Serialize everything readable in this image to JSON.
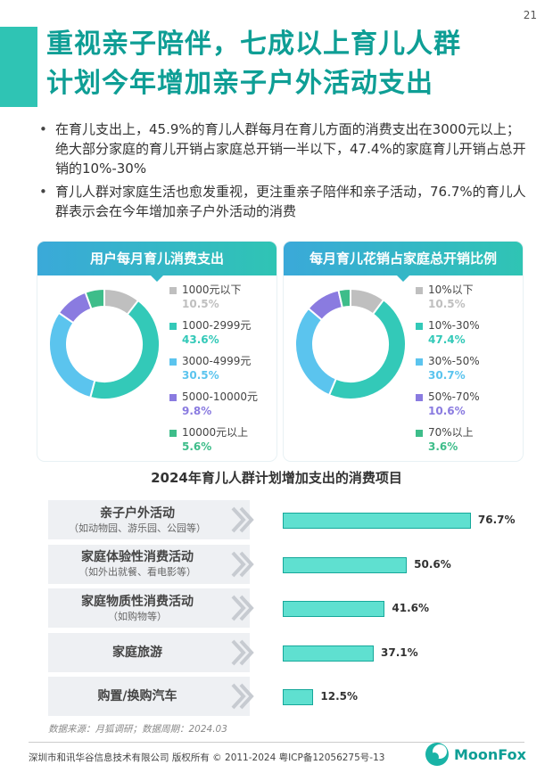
{
  "page_number": "21",
  "title": {
    "line1": "重视亲子陪伴，七成以上育儿人群",
    "line2": "计划今年增加亲子户外活动支出"
  },
  "bullets": [
    "在育儿支出上，45.9%的育儿人群每月在育儿方面的消费支出在3000元以上；绝大部分家庭的育儿开销占家庭总开销一半以下，47.4%的家庭育儿开销占总开销的10%-30%",
    "育儿人群对家庭生活也愈发重视，更注重亲子陪伴和亲子活动，76.7%的育儿人群表示会在今年增加亲子户外活动的消费"
  ],
  "watermark": "MoonFox",
  "chart_data": [
    {
      "type": "pie",
      "title": "用户每月育儿消费支出",
      "categories": [
        "1000元以下",
        "1000-2999元",
        "3000-4999元",
        "5000-10000元",
        "10000元以上"
      ],
      "values": [
        10.5,
        43.6,
        30.5,
        9.8,
        5.6
      ],
      "value_labels": [
        "10.5%",
        "43.6%",
        "30.5%",
        "9.8%",
        "5.6%"
      ],
      "colors": [
        "#bfbfbf",
        "#33c9b8",
        "#5bc4ee",
        "#8a7be0",
        "#3ebd8a"
      ],
      "legend_placement": "right"
    },
    {
      "type": "pie",
      "title": "每月育儿花销占家庭总开销比例",
      "categories": [
        "10%以下",
        "10%-30%",
        "30%-50%",
        "50%-70%",
        "70%以上"
      ],
      "values": [
        10.5,
        47.4,
        30.7,
        10.6,
        3.6
      ],
      "value_labels": [
        "10.5%",
        "47.4%",
        "30.7%",
        "10.6%",
        "3.6%"
      ],
      "colors": [
        "#bfbfbf",
        "#33c9b8",
        "#5bc4ee",
        "#8a7be0",
        "#3ebd8a"
      ],
      "legend_placement": "right"
    },
    {
      "type": "bar",
      "orientation": "horizontal",
      "title": "2024年育儿人群计划增加支出的消费项目",
      "categories": [
        {
          "main": "亲子户外活动",
          "sub": "（如动物园、游乐园、公园等）"
        },
        {
          "main": "家庭体验性消费活动",
          "sub": "（如外出就餐、看电影等）"
        },
        {
          "main": "家庭物质性消费活动",
          "sub": "（如购物等）"
        },
        {
          "main": "家庭旅游",
          "sub": ""
        },
        {
          "main": "购置/换购汽车",
          "sub": ""
        }
      ],
      "values": [
        76.7,
        50.6,
        41.6,
        37.1,
        12.5
      ],
      "value_labels": [
        "76.7%",
        "50.6%",
        "41.6%",
        "37.1%",
        "12.5%"
      ],
      "bar_color": "#5fe0d0",
      "bar_border_color": "#16a89a"
    }
  ],
  "source": "数据来源：月狐调研；数据周期：2024.03",
  "footer": {
    "copyright": "深圳市和讯华谷信息技术有限公司 版权所有 © 2011-2024 粤ICP备12056275号-13",
    "logo_text": "MoonFox"
  },
  "colors": {
    "brand": "#0e9e95",
    "accent": "#2fc4b4"
  }
}
